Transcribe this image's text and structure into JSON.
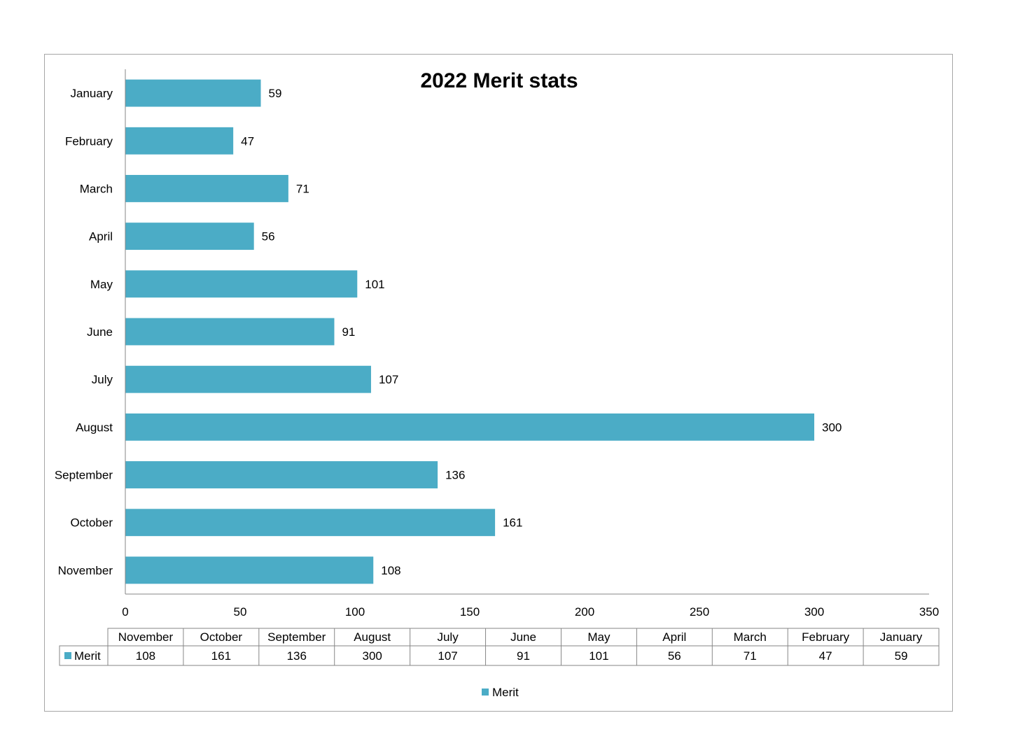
{
  "chart_data": {
    "type": "bar",
    "orientation": "horizontal",
    "title": "2022 Merit stats",
    "categories": [
      "January",
      "February",
      "March",
      "April",
      "May",
      "June",
      "July",
      "August",
      "September",
      "October",
      "November"
    ],
    "series": [
      {
        "name": "Merit",
        "color": "#4bacc6",
        "values": [
          59,
          47,
          71,
          56,
          101,
          91,
          107,
          300,
          136,
          161,
          108
        ]
      }
    ],
    "xlim": [
      0,
      350
    ],
    "x_ticks": [
      "0",
      "50",
      "100",
      "150",
      "200",
      "250",
      "300",
      "350"
    ],
    "grid": false,
    "data_table": {
      "columns": [
        "November",
        "October",
        "September",
        "August",
        "July",
        "June",
        "May",
        "April",
        "March",
        "February",
        "January"
      ],
      "row_label": "Merit",
      "values": [
        "108",
        "161",
        "136",
        "300",
        "107",
        "91",
        "101",
        "56",
        "71",
        "47",
        "59"
      ]
    },
    "legend": {
      "position": "bottom",
      "entries": [
        "Merit"
      ]
    }
  }
}
